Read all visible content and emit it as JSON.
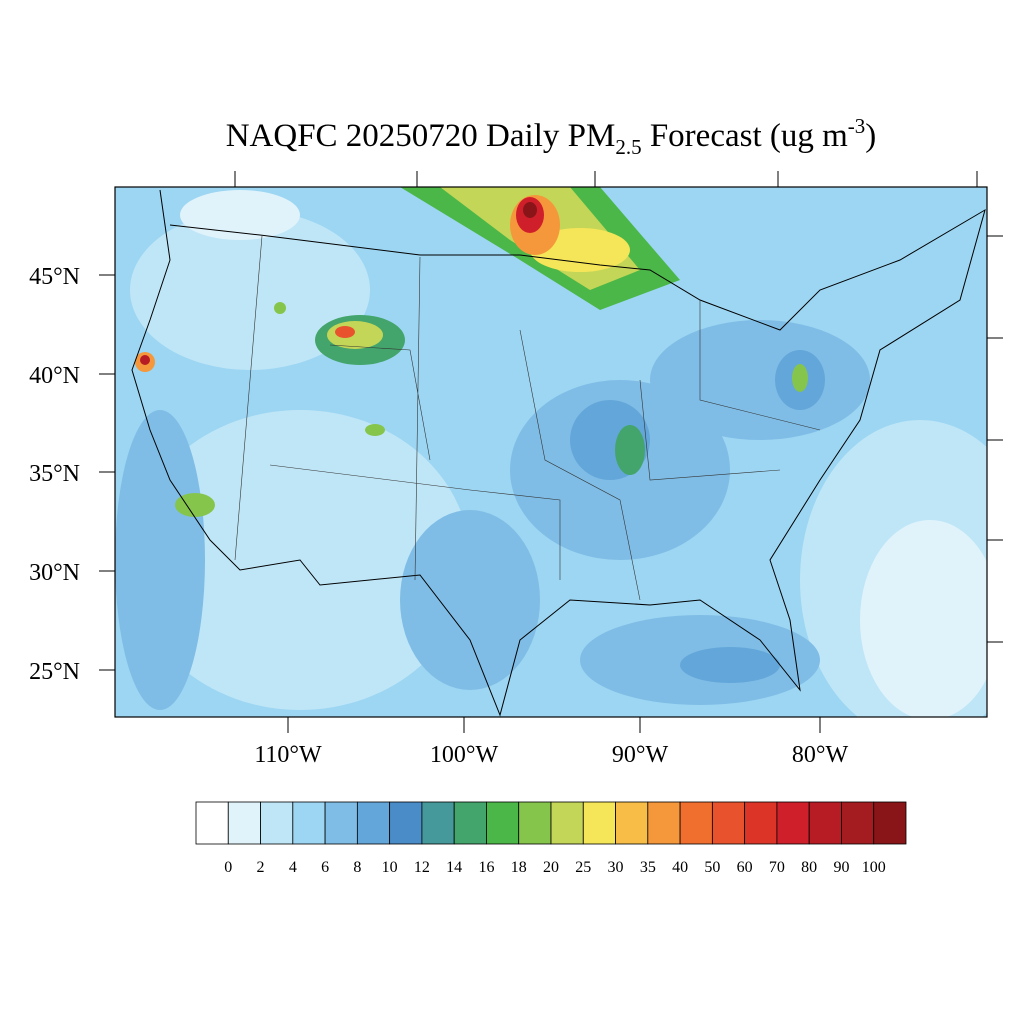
{
  "title": {
    "main": "NAQFC 20250720 Daily PM",
    "sub": "2.5",
    "middle": " Forecast (ug m",
    "sup": "-3",
    "end": ")"
  },
  "map": {
    "lat_labels": [
      "45°N",
      "40°N",
      "35°N",
      "30°N",
      "25°N"
    ],
    "lon_labels": [
      "110°W",
      "100°W",
      "90°W",
      "80°W"
    ]
  },
  "colorbar": {
    "colors": [
      "#ffffff",
      "#e0f3fb",
      "#bfe6f7",
      "#9dd6f3",
      "#7fbde6",
      "#63a6d9",
      "#4a8cc8",
      "#45999a",
      "#43a56b",
      "#4bb748",
      "#86c54c",
      "#c4d657",
      "#f5e558",
      "#f8bd47",
      "#f5983b",
      "#f06f2f",
      "#e8522c",
      "#dc3528",
      "#cf1f2a",
      "#b71c24",
      "#a51c20",
      "#8a1518"
    ],
    "labels": [
      "0",
      "2",
      "4",
      "6",
      "8",
      "10",
      "12",
      "14",
      "16",
      "18",
      "20",
      "25",
      "30",
      "35",
      "40",
      "50",
      "60",
      "70",
      "80",
      "90",
      "100"
    ]
  }
}
